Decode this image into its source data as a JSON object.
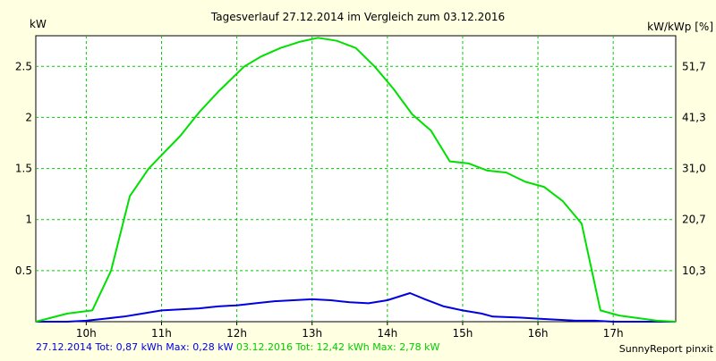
{
  "chart_data": {
    "type": "line",
    "title": "Tagesverlauf 27.12.2014 im Vergleich zum 03.12.2016",
    "ylabel_left": "kW",
    "ylabel_right": "kW/kWp [%]",
    "xlim": [
      9.33,
      17.83
    ],
    "ylim": [
      0,
      2.8
    ],
    "grid": true,
    "x_ticks": [
      {
        "value": 10,
        "label": "10h"
      },
      {
        "value": 11,
        "label": "11h"
      },
      {
        "value": 12,
        "label": "12h"
      },
      {
        "value": 13,
        "label": "13h"
      },
      {
        "value": 14,
        "label": "14h"
      },
      {
        "value": 15,
        "label": "15h"
      },
      {
        "value": 16,
        "label": "16h"
      },
      {
        "value": 17,
        "label": "17h"
      }
    ],
    "y_ticks_left": [
      {
        "value": 0.5,
        "label": "0.5"
      },
      {
        "value": 1.0,
        "label": "1"
      },
      {
        "value": 1.5,
        "label": "1.5"
      },
      {
        "value": 2.0,
        "label": "2"
      },
      {
        "value": 2.5,
        "label": "2.5"
      }
    ],
    "y_ticks_right": [
      {
        "value": 0.5,
        "label": "10,3"
      },
      {
        "value": 1.0,
        "label": "20,7"
      },
      {
        "value": 1.5,
        "label": "31,0"
      },
      {
        "value": 2.0,
        "label": "41,3"
      },
      {
        "value": 2.5,
        "label": "51,7"
      }
    ],
    "series": [
      {
        "name": "27.12.2014 Tot: 0,87 kWh Max: 0,28 kW",
        "color": "#0000e0",
        "points": [
          [
            9.33,
            0.0
          ],
          [
            9.75,
            0.0
          ],
          [
            10.0,
            0.01
          ],
          [
            10.25,
            0.03
          ],
          [
            10.5,
            0.05
          ],
          [
            10.75,
            0.08
          ],
          [
            11.0,
            0.11
          ],
          [
            11.25,
            0.12
          ],
          [
            11.5,
            0.13
          ],
          [
            11.75,
            0.15
          ],
          [
            12.0,
            0.16
          ],
          [
            12.25,
            0.18
          ],
          [
            12.5,
            0.2
          ],
          [
            12.75,
            0.21
          ],
          [
            13.0,
            0.22
          ],
          [
            13.25,
            0.21
          ],
          [
            13.5,
            0.19
          ],
          [
            13.75,
            0.18
          ],
          [
            14.0,
            0.21
          ],
          [
            14.3,
            0.28
          ],
          [
            14.5,
            0.22
          ],
          [
            14.75,
            0.15
          ],
          [
            15.0,
            0.11
          ],
          [
            15.25,
            0.08
          ],
          [
            15.4,
            0.05
          ],
          [
            15.75,
            0.04
          ],
          [
            16.0,
            0.03
          ],
          [
            16.25,
            0.02
          ],
          [
            16.5,
            0.01
          ],
          [
            16.75,
            0.01
          ],
          [
            17.0,
            0.0
          ],
          [
            17.83,
            0.0
          ]
        ]
      },
      {
        "name": "03.12.2016 Tot: 12,42 kWh Max: 2,78 kW",
        "color": "#00e000",
        "points": [
          [
            9.33,
            0.0
          ],
          [
            9.75,
            0.08
          ],
          [
            10.08,
            0.11
          ],
          [
            10.33,
            0.5
          ],
          [
            10.58,
            1.23
          ],
          [
            10.83,
            1.5
          ],
          [
            11.0,
            1.63
          ],
          [
            11.25,
            1.82
          ],
          [
            11.5,
            2.05
          ],
          [
            11.75,
            2.25
          ],
          [
            12.1,
            2.5
          ],
          [
            12.33,
            2.6
          ],
          [
            12.58,
            2.68
          ],
          [
            12.83,
            2.74
          ],
          [
            13.08,
            2.78
          ],
          [
            13.33,
            2.75
          ],
          [
            13.58,
            2.68
          ],
          [
            13.83,
            2.5
          ],
          [
            14.08,
            2.28
          ],
          [
            14.33,
            2.03
          ],
          [
            14.58,
            1.87
          ],
          [
            14.83,
            1.57
          ],
          [
            15.08,
            1.55
          ],
          [
            15.33,
            1.48
          ],
          [
            15.58,
            1.46
          ],
          [
            15.83,
            1.37
          ],
          [
            16.08,
            1.32
          ],
          [
            16.33,
            1.18
          ],
          [
            16.58,
            0.96
          ],
          [
            16.83,
            0.11
          ],
          [
            17.08,
            0.06
          ],
          [
            17.58,
            0.01
          ],
          [
            17.83,
            0.0
          ]
        ]
      }
    ]
  },
  "footer": {
    "series1_text": "27.12.2014 Tot: 0,87 kWh Max: 0,28 kW",
    "series2_text": "03.12.2016 Tot: 12,42 kWh Max: 2,78 kW",
    "brand_text": "SunnyReport pinxit"
  },
  "colors": {
    "background": "#ffffe1",
    "plot_area": "#ffffff",
    "grid": "#00cc00",
    "series1": "#0000e0",
    "series2": "#00e000"
  }
}
